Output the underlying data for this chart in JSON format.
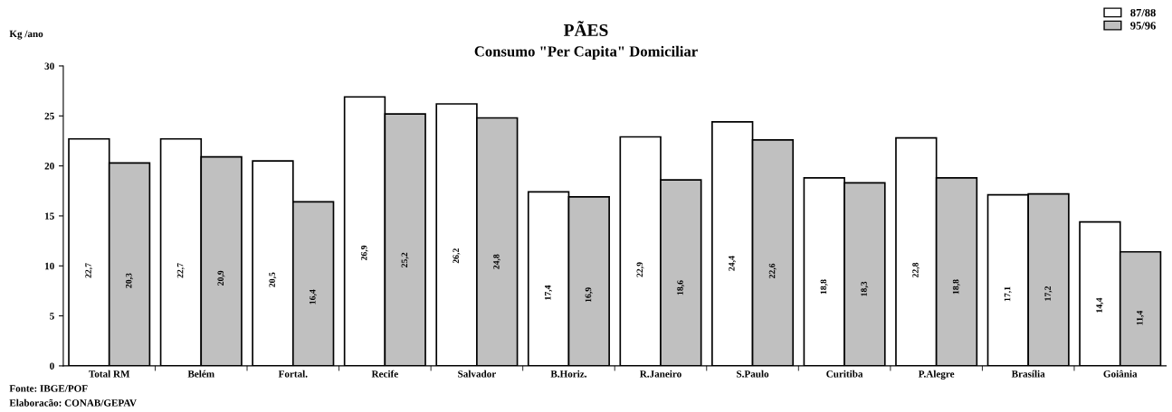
{
  "chart_data": {
    "type": "bar",
    "title": "PÃES",
    "subtitle": "Consumo \"Per Capita\" Domiciliar",
    "ylabel": "Kg /ano",
    "categories": [
      "Total RM",
      "Belém",
      "Fortal.",
      "Recife",
      "Salvador",
      "B.Horiz.",
      "R.Janeiro",
      "S.Paulo",
      "Curitiba",
      "P.Alegre",
      "Brasília",
      "Goiânia"
    ],
    "series": [
      {
        "name": "87/88",
        "color": "#ffffff",
        "values": [
          22.7,
          22.7,
          20.5,
          26.9,
          26.2,
          17.4,
          22.9,
          24.4,
          18.8,
          22.8,
          17.1,
          14.4
        ],
        "value_labels": [
          "22,7",
          "22,7",
          "20,5",
          "26,9",
          "26,2",
          "17,4",
          "22,9",
          "24,4",
          "18,8",
          "22,8",
          "17,1",
          "14,4"
        ]
      },
      {
        "name": "95/96",
        "color": "#c0c0c0",
        "values": [
          20.3,
          20.9,
          16.4,
          25.2,
          24.8,
          16.9,
          18.6,
          22.6,
          18.3,
          18.8,
          17.2,
          11.4
        ],
        "value_labels": [
          "20,3",
          "20,9",
          "16,4",
          "25,2",
          "24,8",
          "16,9",
          "18,6",
          "22,6",
          "18,3",
          "18,8",
          "17,2",
          "11,4"
        ]
      }
    ],
    "ylim": [
      0,
      30
    ],
    "yticks": [
      0,
      5,
      10,
      15,
      20,
      25,
      30
    ],
    "grid": false,
    "legend": "top right",
    "annotations": [
      "Fonte: IBGE/POF",
      "Elaboracão: CONAB/GEPAV"
    ]
  }
}
